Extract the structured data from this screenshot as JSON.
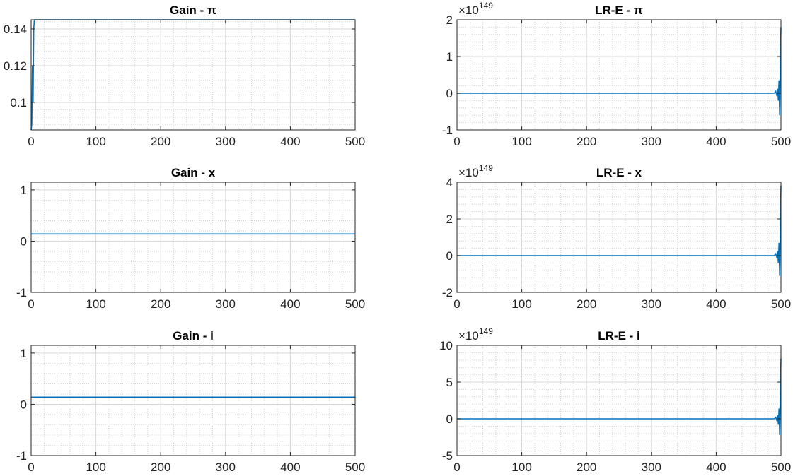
{
  "chart_data": [
    {
      "type": "line",
      "title": "Gain - π",
      "xlim": [
        0,
        500
      ],
      "ylim": [
        0.085,
        0.145
      ],
      "xticks": [
        0,
        100,
        200,
        300,
        400,
        500
      ],
      "yticks": [
        0.1,
        0.12,
        0.14
      ],
      "ytick_labels": [
        "0.1",
        "0.12",
        "0.14"
      ],
      "grid": true,
      "exponent_label": "",
      "series": [
        {
          "color": "#0072bd",
          "x": [
            0,
            1,
            2,
            3,
            4,
            5,
            10,
            500
          ],
          "y": [
            0.085,
            0.088,
            0.12,
            0.1,
            0.14,
            0.145,
            0.145,
            0.145
          ]
        }
      ]
    },
    {
      "type": "line",
      "title": "LR-E - π",
      "xlim": [
        0,
        500
      ],
      "ylim": [
        -1,
        2
      ],
      "xticks": [
        0,
        100,
        200,
        300,
        400,
        500
      ],
      "yticks": [
        -1,
        0,
        1,
        2
      ],
      "ytick_labels": [
        "-1",
        "0",
        "1",
        "2"
      ],
      "grid": true,
      "exponent_label": "149",
      "series": [
        {
          "color": "#0072bd",
          "x": [
            0,
            490,
            492,
            494,
            495,
            496,
            497,
            498,
            499,
            500
          ],
          "y": [
            0,
            0,
            0.05,
            -0.08,
            0.12,
            -0.2,
            0.35,
            -0.6,
            0.9,
            1.8
          ]
        }
      ]
    },
    {
      "type": "line",
      "title": "Gain - x",
      "xlim": [
        0,
        500
      ],
      "ylim": [
        -1,
        1.15
      ],
      "xticks": [
        0,
        100,
        200,
        300,
        400,
        500
      ],
      "yticks": [
        -1,
        0,
        1
      ],
      "ytick_labels": [
        "-1",
        "0",
        "1"
      ],
      "grid": true,
      "exponent_label": "",
      "series": [
        {
          "color": "#0072bd",
          "x": [
            0,
            500
          ],
          "y": [
            0.14,
            0.14
          ]
        }
      ]
    },
    {
      "type": "line",
      "title": "LR-E - x",
      "xlim": [
        0,
        500
      ],
      "ylim": [
        -2,
        4
      ],
      "xticks": [
        0,
        100,
        200,
        300,
        400,
        500
      ],
      "yticks": [
        -2,
        0,
        2,
        4
      ],
      "ytick_labels": [
        "-2",
        "0",
        "2",
        "4"
      ],
      "grid": true,
      "exponent_label": "149",
      "series": [
        {
          "color": "#0072bd",
          "x": [
            0,
            490,
            492,
            494,
            495,
            496,
            497,
            498,
            499,
            500
          ],
          "y": [
            0,
            0,
            0.1,
            -0.15,
            0.25,
            -0.4,
            0.7,
            -1.1,
            1.8,
            3.8
          ]
        }
      ]
    },
    {
      "type": "line",
      "title": "Gain - i",
      "xlim": [
        0,
        500
      ],
      "ylim": [
        -1,
        1.15
      ],
      "xticks": [
        0,
        100,
        200,
        300,
        400,
        500
      ],
      "yticks": [
        -1,
        0,
        1
      ],
      "ytick_labels": [
        "-1",
        "0",
        "1"
      ],
      "grid": true,
      "exponent_label": "",
      "series": [
        {
          "color": "#0072bd",
          "x": [
            0,
            500
          ],
          "y": [
            0.14,
            0.14
          ]
        }
      ]
    },
    {
      "type": "line",
      "title": "LR-E - i",
      "xlim": [
        0,
        500
      ],
      "ylim": [
        -5,
        10
      ],
      "xticks": [
        0,
        100,
        200,
        300,
        400,
        500
      ],
      "yticks": [
        -5,
        0,
        5,
        10
      ],
      "ytick_labels": [
        "-5",
        "0",
        "5",
        "10"
      ],
      "grid": true,
      "exponent_label": "149",
      "series": [
        {
          "color": "#0072bd",
          "x": [
            0,
            490,
            492,
            494,
            495,
            496,
            497,
            498,
            499,
            500
          ],
          "y": [
            0,
            0,
            0.2,
            -0.3,
            0.5,
            -0.8,
            1.4,
            -2.2,
            3.6,
            8.2
          ]
        }
      ]
    }
  ]
}
